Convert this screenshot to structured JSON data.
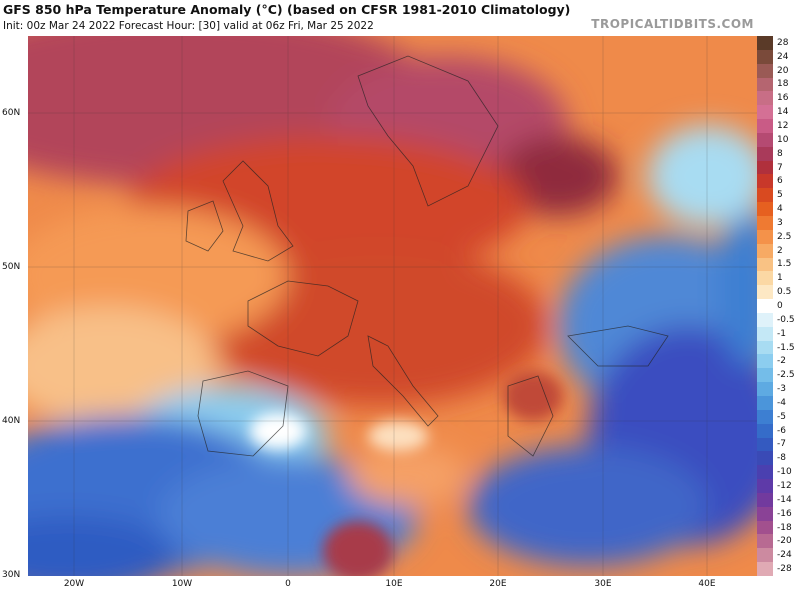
{
  "header": {
    "title": "GFS 850 hPa Temperature Anomaly (°C) (based on CFSR 1981-2010 Climatology)",
    "subtitle": "Init: 00z Mar 24 2022   Forecast Hour: [30]   valid at 06z Fri, Mar 25 2022",
    "brand": "TROPICALTIDBITS.COM"
  },
  "axes": {
    "lat_labels": [
      "60N",
      "50N",
      "40N",
      "30N"
    ],
    "lon_labels": [
      "20W",
      "10W",
      "0",
      "10E",
      "20E",
      "30E",
      "40E"
    ]
  },
  "colorbar": {
    "labels": [
      "28",
      "24",
      "20",
      "18",
      "16",
      "14",
      "12",
      "10",
      "8",
      "7",
      "6",
      "5",
      "4",
      "3",
      "2.5",
      "2",
      "1.5",
      "1",
      "0.5",
      "0",
      "-0.5",
      "-1",
      "-1.5",
      "-2",
      "-2.5",
      "-3",
      "-4",
      "-5",
      "-6",
      "-7",
      "-8",
      "-10",
      "-12",
      "-14",
      "-16",
      "-18",
      "-20",
      "-24",
      "-28"
    ],
    "colors": [
      "#5a3a28",
      "#7a4a3a",
      "#9a5a55",
      "#b56570",
      "#c86e86",
      "#d47095",
      "#c95b86",
      "#b54a72",
      "#a93a5a",
      "#b0303c",
      "#c8382a",
      "#d94a20",
      "#e66020",
      "#ef7a32",
      "#f4924a",
      "#f7aa64",
      "#f9c284",
      "#fbd8a4",
      "#fde8c4",
      "#ffffff",
      "#dff2fa",
      "#c4e8f6",
      "#a8dcf2",
      "#8ccdef",
      "#74bde9",
      "#5eaae2",
      "#4b95da",
      "#3d7fd2",
      "#356cc9",
      "#345ac0",
      "#3a4ab6",
      "#4a40b0",
      "#5e3aa8",
      "#723a9e",
      "#8a4296",
      "#a2508e",
      "#b86a92",
      "#cc8aa0",
      "#e0aab4"
    ]
  }
}
